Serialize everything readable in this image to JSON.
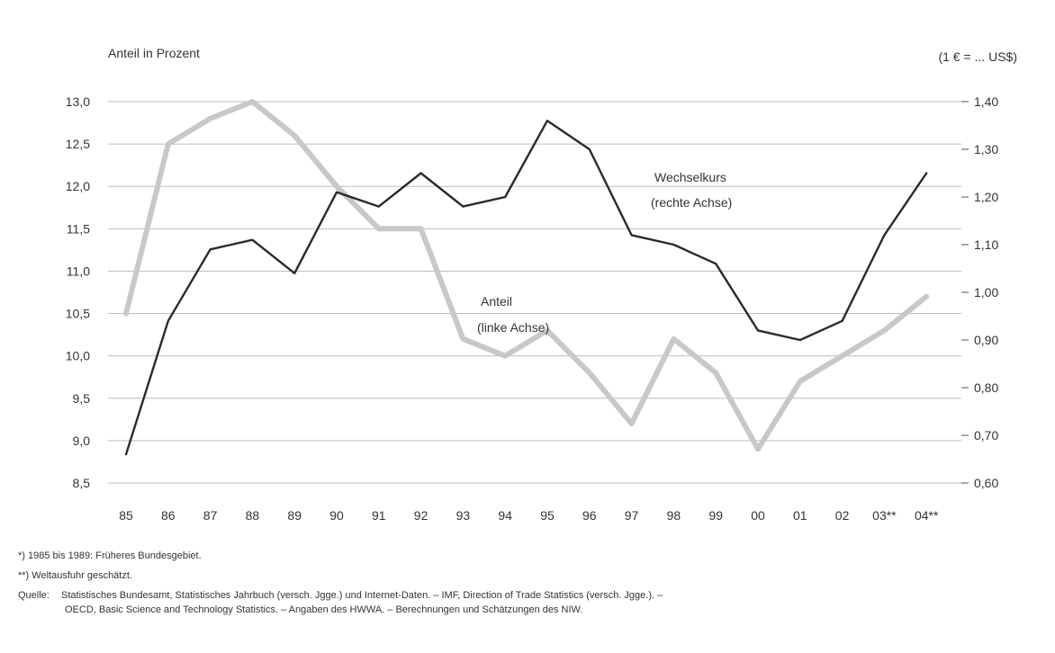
{
  "chart_data": {
    "type": "line",
    "left_axis": {
      "title": "Anteil in Prozent",
      "ylim": [
        8.5,
        13.0
      ],
      "ticks": [
        "13,0",
        "12,5",
        "12,0",
        "11,5",
        "11,0",
        "10,5",
        "10,0",
        "9,5",
        "9,0",
        "8,5"
      ],
      "tick_values": [
        13.0,
        12.5,
        12.0,
        11.5,
        11.0,
        10.5,
        10.0,
        9.5,
        9.0,
        8.5
      ]
    },
    "right_axis": {
      "title": "(1 € = ... US$)",
      "ylim": [
        0.6,
        1.4
      ],
      "ticks": [
        "1,40",
        "1,30",
        "1,20",
        "1,10",
        "1,00",
        "0,90",
        "0,80",
        "0,70",
        "0,60"
      ],
      "tick_values": [
        1.4,
        1.3,
        1.2,
        1.1,
        1.0,
        0.9,
        0.8,
        0.7,
        0.6
      ]
    },
    "categories": [
      "85",
      "86",
      "87",
      "88",
      "89",
      "90",
      "91",
      "92",
      "93",
      "94",
      "95",
      "96",
      "97",
      "98",
      "99",
      "00",
      "01",
      "02",
      "03**",
      "04**"
    ],
    "series": [
      {
        "name": "Anteil (linke Achse)",
        "axis": "left",
        "color": "#c8c8c8",
        "values": [
          10.5,
          12.5,
          12.8,
          13.0,
          12.6,
          12.0,
          11.5,
          11.5,
          10.2,
          10.0,
          10.3,
          9.8,
          9.2,
          10.2,
          9.8,
          8.9,
          9.7,
          10.0,
          10.3,
          10.7
        ]
      },
      {
        "name": "Wechselkurs (rechte Achse)",
        "axis": "right",
        "color": "#2a2a2a",
        "values": [
          0.66,
          0.94,
          1.09,
          1.11,
          1.04,
          1.21,
          1.18,
          1.25,
          1.18,
          1.2,
          1.36,
          1.3,
          1.12,
          1.1,
          1.06,
          0.92,
          0.9,
          0.94,
          1.12,
          1.25
        ]
      }
    ],
    "annotations": [
      {
        "lines": [
          "Wechselkurs",
          "(rechte Achse)"
        ]
      },
      {
        "lines": [
          "Anteil",
          "(linke Achse)"
        ]
      }
    ],
    "grid": "horizontal"
  },
  "footnotes": {
    "note1": "*) 1985 bis 1989: Früheres Bundesgebiet.",
    "note2": "**) Weltausfuhr geschätzt.",
    "source_label": "Quelle:",
    "source_line1": "Statistisches Bundesamt, Statistisches Jahrbuch (versch. Jgge.) und Internet-Daten. – IMF, Direction of Trade Statistics (versch. Jgge.). –",
    "source_line2": "OECD, Basic Science and Technology Statistics. – Angaben des HWWA. – Berechnungen und Schätzungen des NIW."
  },
  "colors": {
    "grid": "#bdbdbd",
    "anteil": "#c8c8c8",
    "wechselkurs": "#2a2a2a"
  }
}
